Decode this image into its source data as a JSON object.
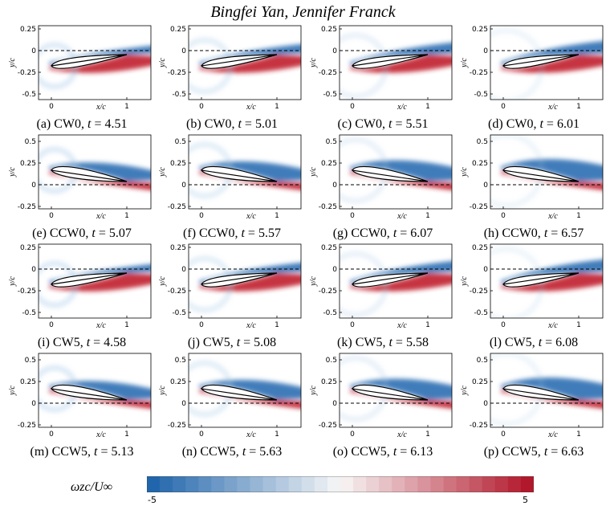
{
  "header": {
    "authors": "Bingfei Yan, Jennifer Franck"
  },
  "chart_data": {
    "type": "heatmap",
    "description_variable": "vorticity contours",
    "xlabel": "x/c",
    "ylabel": "y/c",
    "x_ticks": [
      "0",
      "1"
    ],
    "y_ticks_cw": [
      "0.25",
      "0",
      "-0.25",
      "-0.5"
    ],
    "y_ticks_ccw": [
      "0.5",
      "0.25",
      "0",
      "-0.25"
    ],
    "colorbar": {
      "label": "ωzc/U∞",
      "min": -5,
      "max": 5,
      "min_label": "-5",
      "max_label": "5",
      "colors": [
        "#2166ac",
        "#f7f7f7",
        "#b2182b"
      ]
    },
    "panels": [
      {
        "tag": "(a)",
        "case": "CW0",
        "t": "4.51",
        "pitch": "cw"
      },
      {
        "tag": "(b)",
        "case": "CW0",
        "t": "5.01",
        "pitch": "cw"
      },
      {
        "tag": "(c)",
        "case": "CW0",
        "t": "5.51",
        "pitch": "cw"
      },
      {
        "tag": "(d)",
        "case": "CW0",
        "t": "6.01",
        "pitch": "cw"
      },
      {
        "tag": "(e)",
        "case": "CCW0",
        "t": "5.07",
        "pitch": "ccw"
      },
      {
        "tag": "(f)",
        "case": "CCW0",
        "t": "5.57",
        "pitch": "ccw"
      },
      {
        "tag": "(g)",
        "case": "CCW0",
        "t": "6.07",
        "pitch": "ccw"
      },
      {
        "tag": "(h)",
        "case": "CCW0",
        "t": "6.57",
        "pitch": "ccw"
      },
      {
        "tag": "(i)",
        "case": "CW5",
        "t": "4.58",
        "pitch": "cw"
      },
      {
        "tag": "(j)",
        "case": "CW5",
        "t": "5.08",
        "pitch": "cw"
      },
      {
        "tag": "(k)",
        "case": "CW5",
        "t": "5.58",
        "pitch": "cw"
      },
      {
        "tag": "(l)",
        "case": "CW5",
        "t": "6.08",
        "pitch": "cw"
      },
      {
        "tag": "(m)",
        "case": "CCW5",
        "t": "5.13",
        "pitch": "ccw"
      },
      {
        "tag": "(n)",
        "case": "CCW5",
        "t": "5.63",
        "pitch": "ccw"
      },
      {
        "tag": "(o)",
        "case": "CCW5",
        "t": "6.13",
        "pitch": "ccw"
      },
      {
        "tag": "(p)",
        "case": "CCW5",
        "t": "6.63",
        "pitch": "ccw"
      }
    ]
  }
}
